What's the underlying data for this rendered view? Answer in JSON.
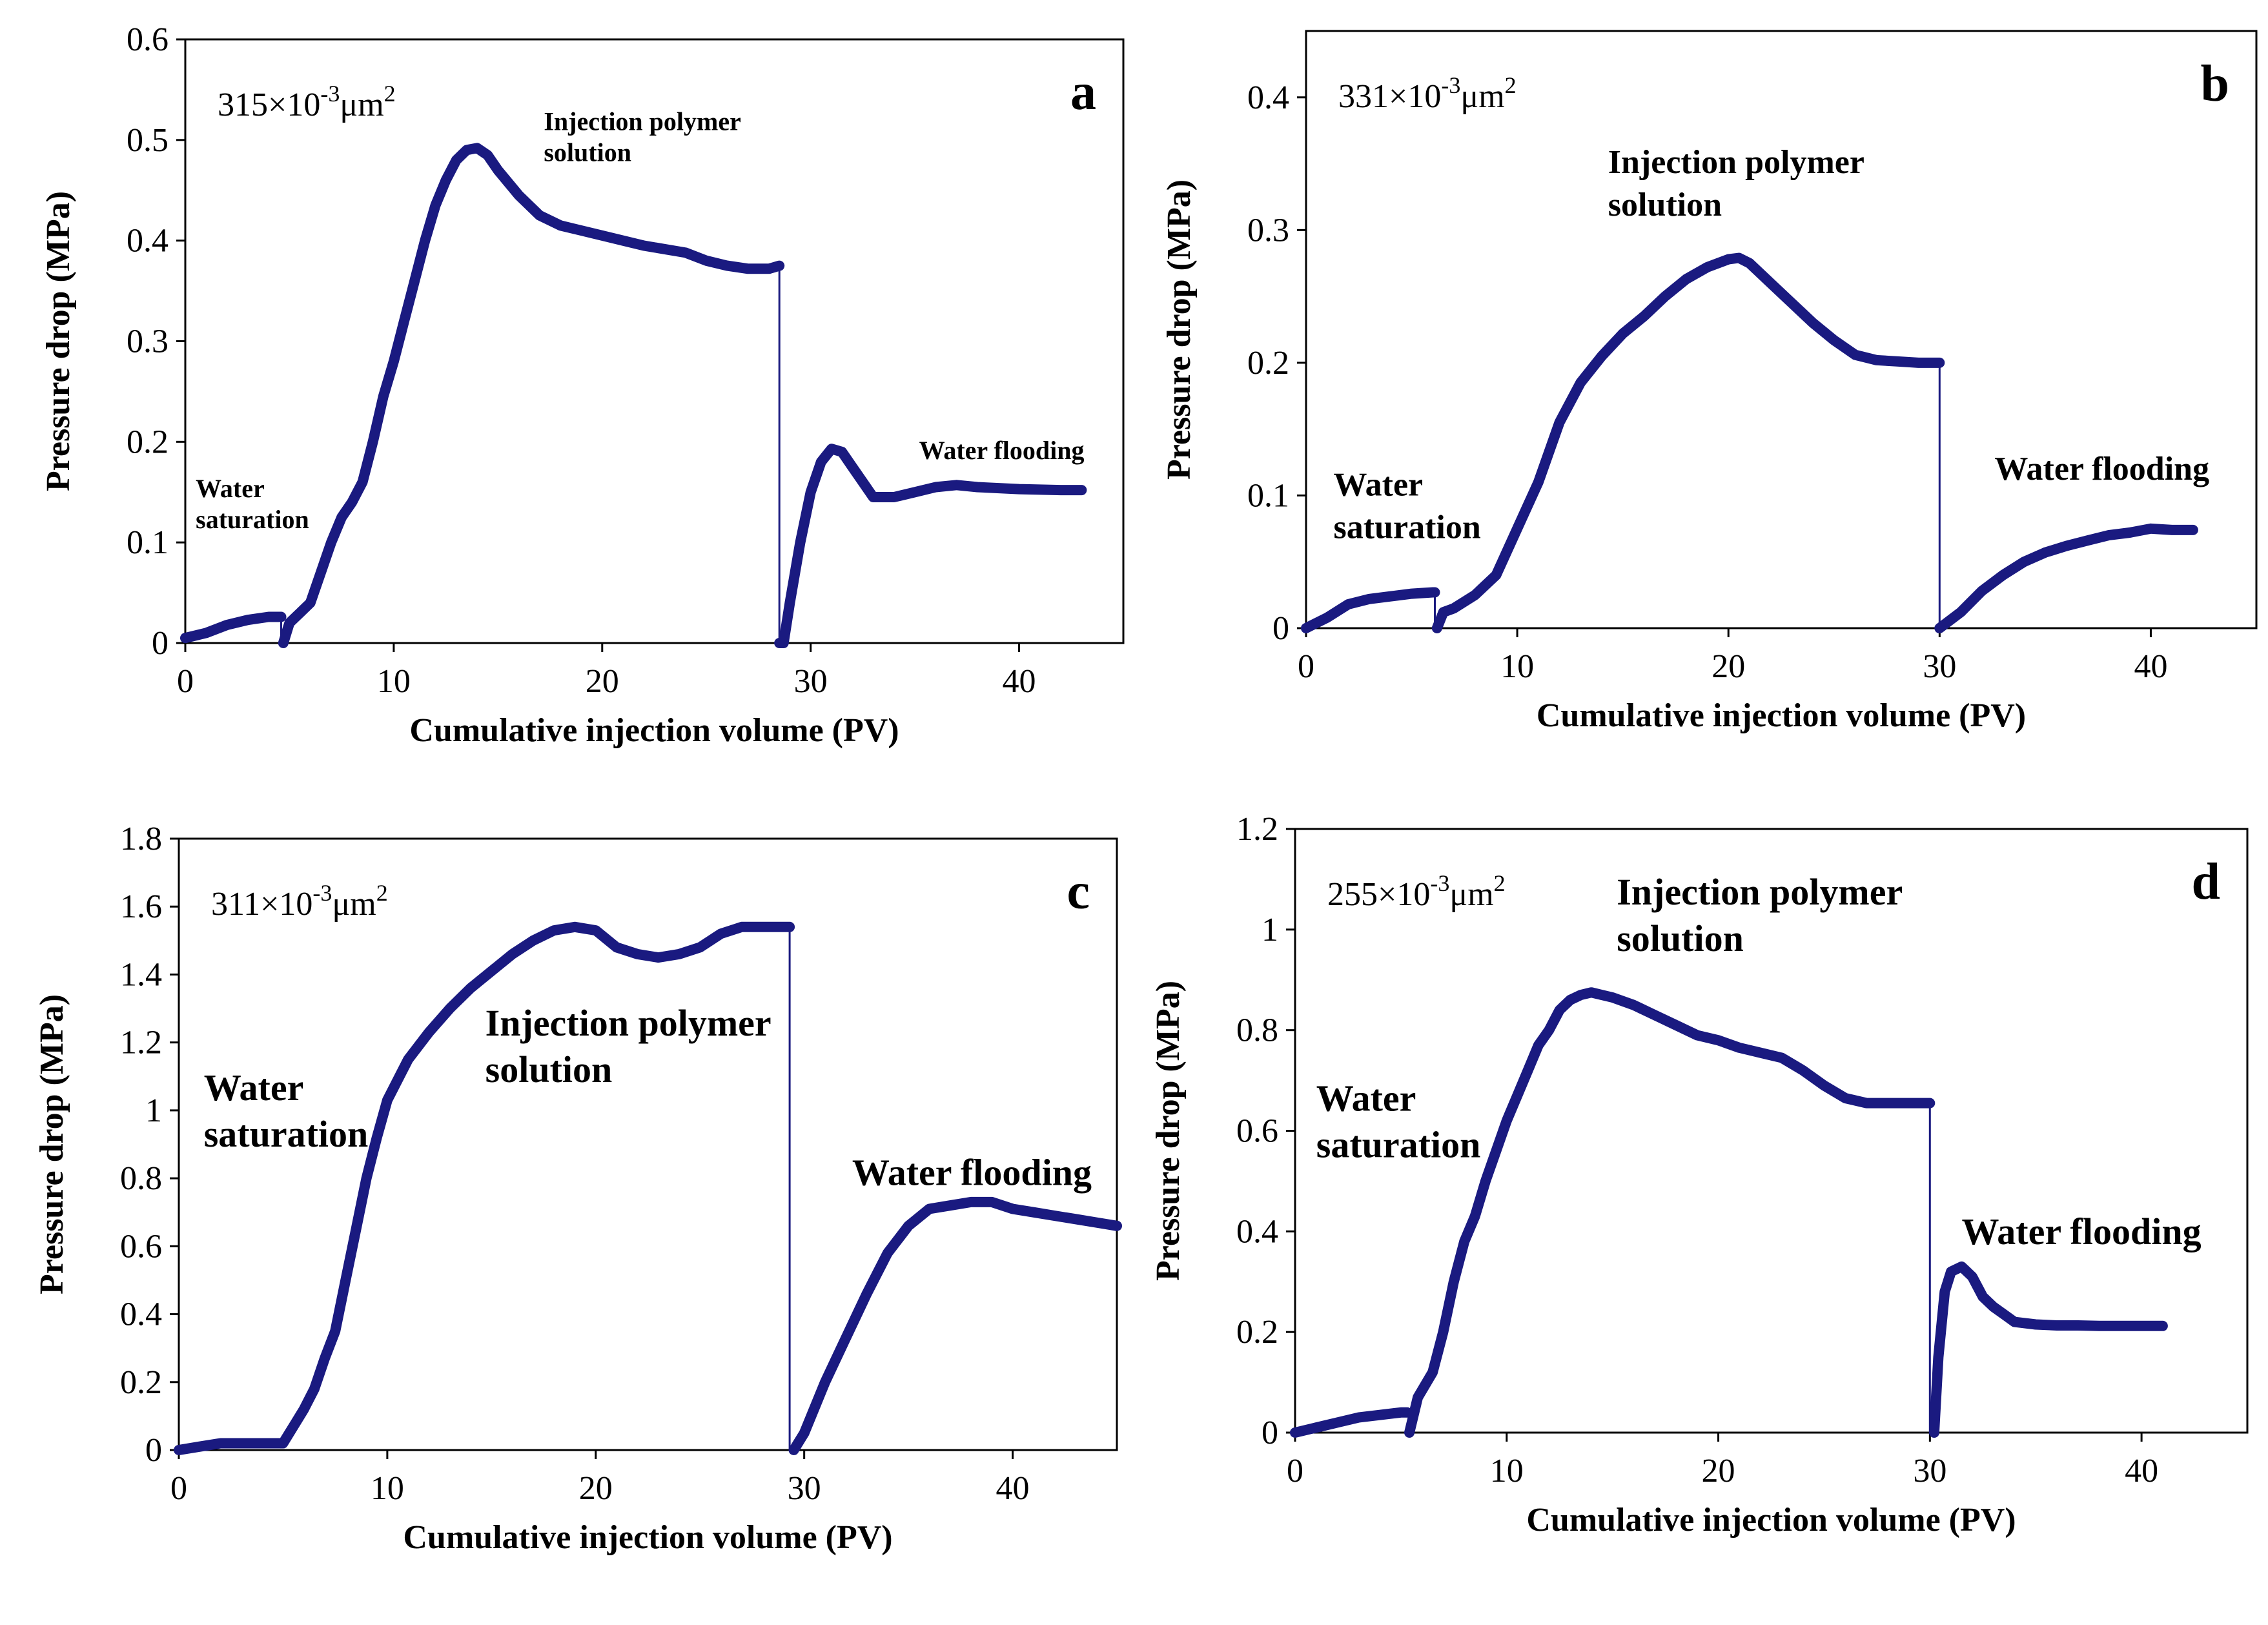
{
  "colors": {
    "series": "#1a1a80"
  },
  "chart_data": [
    {
      "type": "line",
      "panel": "a",
      "permeability": {
        "base": "315×10",
        "exp": "-3",
        "unit": "μm",
        "unitexp": "2"
      },
      "xlabel": "Cumulative injection volume (PV)",
      "ylabel": "Pressure drop (MPa)",
      "xlim": [
        0,
        45
      ],
      "ylim": [
        0,
        0.6
      ],
      "xticks": [
        "0",
        "10",
        "20",
        "30",
        "40"
      ],
      "xtickValues": [
        0,
        10,
        20,
        30,
        40
      ],
      "yticks": [
        "0",
        "0.1",
        "0.2",
        "0.3",
        "0.4",
        "0.5",
        "0.6"
      ],
      "ytickValues": [
        0,
        0.1,
        0.2,
        0.3,
        0.4,
        0.5,
        0.6
      ],
      "annotations": [
        {
          "lines": [
            "Water",
            "saturation"
          ],
          "x": 0.5,
          "y": 0.145
        },
        {
          "lines": [
            "Injection polymer",
            "solution"
          ],
          "x": 17.2,
          "y": 0.51
        },
        {
          "lines": [
            "Water flooding"
          ],
          "x": 35.2,
          "y": 0.183
        }
      ],
      "series": [
        {
          "name": "Pressure drop",
          "segments": [
            {
              "x": [
                0,
                1,
                2,
                3,
                4,
                4.5,
                4.6
              ],
              "y": [
                0.005,
                0.01,
                0.018,
                0.023,
                0.026,
                0.026,
                0.026
              ]
            },
            {
              "x": [
                4.7,
                5,
                5.5,
                6,
                6.5,
                7,
                7.5,
                8,
                8.5,
                9,
                9.5,
                10,
                10.5,
                11,
                11.5,
                12,
                12.5,
                13,
                13.5,
                14,
                14.5,
                15,
                16,
                17,
                18,
                20,
                22,
                24,
                25,
                26,
                27,
                28,
                28.5
              ],
              "y": [
                0,
                0.02,
                0.03,
                0.04,
                0.07,
                0.1,
                0.125,
                0.14,
                0.16,
                0.2,
                0.245,
                0.28,
                0.32,
                0.36,
                0.4,
                0.435,
                0.46,
                0.48,
                0.49,
                0.492,
                0.485,
                0.47,
                0.445,
                0.425,
                0.415,
                0.405,
                0.395,
                0.388,
                0.38,
                0.375,
                0.372,
                0.372,
                0.375
              ]
            },
            {
              "x": [
                28.5,
                28.7,
                29,
                29.5,
                30,
                30.5,
                31,
                31.5,
                32,
                32.5,
                33,
                34,
                35,
                36,
                37,
                38,
                40,
                42,
                43
              ],
              "y": [
                0,
                0,
                0.04,
                0.1,
                0.15,
                0.18,
                0.193,
                0.19,
                0.175,
                0.16,
                0.145,
                0.145,
                0.15,
                0.155,
                0.157,
                0.155,
                0.153,
                0.152,
                0.152
              ]
            }
          ]
        }
      ]
    },
    {
      "type": "line",
      "panel": "b",
      "permeability": {
        "base": "331×10",
        "exp": "-3",
        "unit": "μm",
        "unitexp": "2"
      },
      "xlabel": "Cumulative injection volume (PV)",
      "ylabel": "Pressure drop (MPa)",
      "xlim": [
        0,
        45
      ],
      "ylim": [
        0,
        0.45
      ],
      "xticks": [
        "0",
        "10",
        "20",
        "30",
        "40"
      ],
      "xtickValues": [
        0,
        10,
        20,
        30,
        40
      ],
      "yticks": [
        "0",
        "0.1",
        "0.2",
        "0.3",
        "0.4"
      ],
      "ytickValues": [
        0,
        0.1,
        0.2,
        0.3,
        0.4
      ],
      "annotations": [
        {
          "lines": [
            "Water",
            "saturation"
          ],
          "x": 1.3,
          "y": 0.1
        },
        {
          "lines": [
            "Injection polymer",
            "solution"
          ],
          "x": 14.3,
          "y": 0.343
        },
        {
          "lines": [
            "Water flooding"
          ],
          "x": 32.6,
          "y": 0.112
        }
      ],
      "series": [
        {
          "name": "Pressure drop",
          "segments": [
            {
              "x": [
                0,
                1,
                2,
                3,
                4,
                5,
                6,
                6.1
              ],
              "y": [
                0,
                0.008,
                0.018,
                0.022,
                0.024,
                0.026,
                0.027,
                0.027
              ]
            },
            {
              "x": [
                6.2,
                6.5,
                7,
                8,
                9,
                10,
                11,
                12,
                13,
                14,
                15,
                16,
                17,
                18,
                19,
                20,
                20.5,
                21,
                22,
                23,
                24,
                25,
                26,
                27,
                28,
                29,
                30
              ],
              "y": [
                0,
                0.012,
                0.015,
                0.025,
                0.04,
                0.075,
                0.11,
                0.155,
                0.185,
                0.205,
                0.222,
                0.235,
                0.25,
                0.263,
                0.272,
                0.278,
                0.279,
                0.275,
                0.26,
                0.245,
                0.23,
                0.217,
                0.206,
                0.202,
                0.201,
                0.2,
                0.2
              ]
            },
            {
              "x": [
                30,
                31,
                32,
                33,
                34,
                35,
                36,
                37,
                38,
                39,
                40,
                41,
                42
              ],
              "y": [
                0,
                0.012,
                0.028,
                0.04,
                0.05,
                0.057,
                0.062,
                0.066,
                0.07,
                0.072,
                0.075,
                0.074,
                0.074
              ]
            }
          ]
        }
      ]
    },
    {
      "type": "line",
      "panel": "c",
      "permeability": {
        "base": "311×10",
        "exp": "-3",
        "unit": "μm",
        "unitexp": "2"
      },
      "xlabel": "Cumulative injection volume (PV)",
      "ylabel": "Pressure drop (MPa)",
      "xlim": [
        0,
        45
      ],
      "ylim": [
        0,
        1.8
      ],
      "xticks": [
        "0",
        "10",
        "20",
        "30",
        "40"
      ],
      "xtickValues": [
        0,
        10,
        20,
        30,
        40
      ],
      "yticks": [
        "0",
        "0.2",
        "0.4",
        "0.6",
        "0.8",
        "1",
        "1.2",
        "1.4",
        "1.6",
        "1.8"
      ],
      "ytickValues": [
        0,
        0.2,
        0.4,
        0.6,
        0.8,
        1,
        1.2,
        1.4,
        1.6,
        1.8
      ],
      "annotations": [
        {
          "lines": [
            "Water",
            "saturation"
          ],
          "x": 1.2,
          "y": 1.03
        },
        {
          "lines": [
            "Injection polymer",
            "solution"
          ],
          "x": 14.7,
          "y": 1.22
        },
        {
          "lines": [
            "Water flooding"
          ],
          "x": 32.3,
          "y": 0.78
        }
      ],
      "series": [
        {
          "name": "Pressure drop",
          "segments": [
            {
              "x": [
                0,
                1,
                2,
                3,
                4,
                5,
                5.5,
                6,
                6.5,
                7,
                7.5,
                8,
                8.5,
                9,
                9.5,
                10,
                11,
                12,
                13,
                14,
                15,
                16,
                17,
                18,
                19,
                20,
                21,
                22,
                23,
                24,
                25,
                26,
                27,
                28,
                29.3
              ],
              "y": [
                0,
                0.01,
                0.02,
                0.02,
                0.02,
                0.02,
                0.07,
                0.12,
                0.18,
                0.27,
                0.35,
                0.5,
                0.65,
                0.8,
                0.92,
                1.03,
                1.15,
                1.23,
                1.3,
                1.36,
                1.41,
                1.46,
                1.5,
                1.53,
                1.54,
                1.53,
                1.48,
                1.46,
                1.45,
                1.46,
                1.48,
                1.52,
                1.54,
                1.54,
                1.54
              ]
            },
            {
              "x": [
                29.5,
                30,
                31,
                32,
                33,
                34,
                35,
                36,
                37,
                38,
                39,
                40,
                41,
                42,
                43,
                44,
                45
              ],
              "y": [
                0,
                0.05,
                0.2,
                0.33,
                0.46,
                0.58,
                0.66,
                0.71,
                0.72,
                0.73,
                0.73,
                0.71,
                0.7,
                0.69,
                0.68,
                0.67,
                0.66
              ]
            }
          ]
        }
      ]
    },
    {
      "type": "line",
      "panel": "d",
      "permeability": {
        "base": "255×10",
        "exp": "-3",
        "unit": "μm",
        "unitexp": "2"
      },
      "xlabel": "Cumulative injection volume (PV)",
      "ylabel": "Pressure drop (MPa)",
      "xlim": [
        0,
        45
      ],
      "ylim": [
        0,
        1.2
      ],
      "xticks": [
        "0",
        "10",
        "20",
        "30",
        "40"
      ],
      "xtickValues": [
        0,
        10,
        20,
        30,
        40
      ],
      "yticks": [
        "0",
        "0.2",
        "0.4",
        "0.6",
        "0.8",
        "1",
        "1.2"
      ],
      "ytickValues": [
        0,
        0.2,
        0.4,
        0.6,
        0.8,
        1,
        1.2
      ],
      "annotations": [
        {
          "lines": [
            "Water",
            "saturation"
          ],
          "x": 1.0,
          "y": 0.64
        },
        {
          "lines": [
            "Injection polymer",
            "solution"
          ],
          "x": 15.2,
          "y": 1.05
        },
        {
          "lines": [
            "Water flooding"
          ],
          "x": 31.5,
          "y": 0.375
        }
      ],
      "series": [
        {
          "name": "Pressure drop",
          "segments": [
            {
              "x": [
                0,
                1,
                2,
                3,
                4,
                5,
                5.3
              ],
              "y": [
                0,
                0.01,
                0.02,
                0.03,
                0.035,
                0.04,
                0.04
              ]
            },
            {
              "x": [
                5.4,
                5.8,
                6.5,
                7,
                7.5,
                8,
                8.5,
                9,
                9.5,
                10,
                10.5,
                11,
                11.5,
                12,
                12.5,
                13,
                13.5,
                14,
                14.5,
                15,
                16,
                17,
                18,
                19,
                20,
                21,
                22,
                23,
                24,
                25,
                26,
                27,
                28,
                29,
                30
              ],
              "y": [
                0,
                0.07,
                0.12,
                0.2,
                0.3,
                0.38,
                0.43,
                0.5,
                0.56,
                0.62,
                0.67,
                0.72,
                0.77,
                0.8,
                0.84,
                0.86,
                0.87,
                0.875,
                0.87,
                0.865,
                0.85,
                0.83,
                0.81,
                0.79,
                0.78,
                0.765,
                0.755,
                0.745,
                0.72,
                0.69,
                0.665,
                0.655,
                0.655,
                0.655,
                0.655
              ]
            },
            {
              "x": [
                30.2,
                30.4,
                30.7,
                31,
                31.5,
                32,
                32.5,
                33,
                33.5,
                34,
                35,
                36,
                37,
                38,
                39,
                40,
                41
              ],
              "y": [
                0,
                0.15,
                0.28,
                0.32,
                0.33,
                0.31,
                0.27,
                0.25,
                0.235,
                0.22,
                0.215,
                0.213,
                0.213,
                0.212,
                0.212,
                0.212,
                0.212
              ]
            }
          ]
        }
      ]
    }
  ]
}
